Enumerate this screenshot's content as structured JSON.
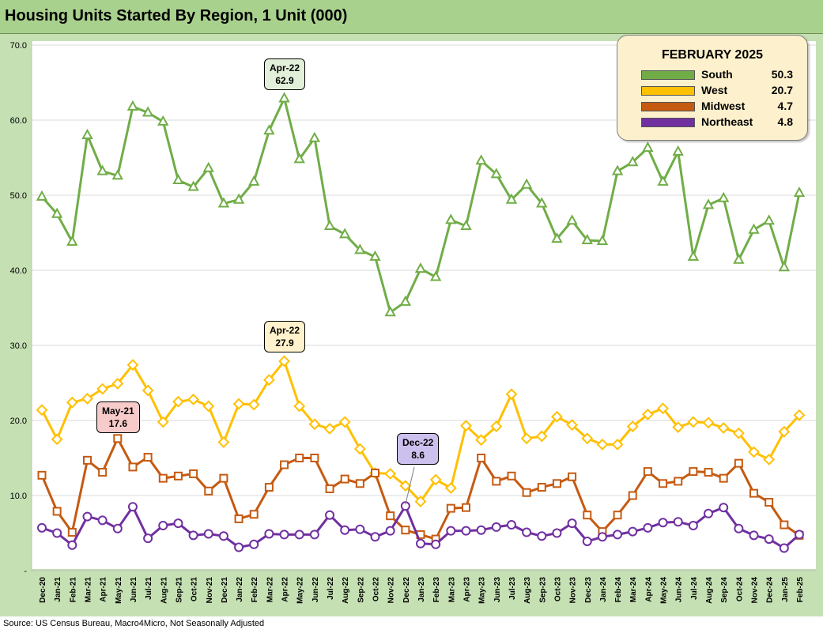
{
  "title": "Housing Units Started By Region, 1 Unit (000)",
  "source": "Source: US Census Bureau, Macro4Micro, Not Seasonally Adjusted",
  "legend": {
    "title": "FEBRUARY 2025",
    "items": [
      {
        "name": "South",
        "value": "50.3",
        "color": "#70ad47"
      },
      {
        "name": "West",
        "value": "20.7",
        "color": "#ffc000"
      },
      {
        "name": "Midwest",
        "value": "4.7",
        "color": "#c55a11"
      },
      {
        "name": "Northeast",
        "value": "4.8",
        "color": "#7030a0"
      }
    ]
  },
  "callouts": [
    {
      "period": "Apr-22",
      "value": "62.9",
      "series": "South",
      "bg": "#e2efd9"
    },
    {
      "period": "Apr-22",
      "value": "27.9",
      "series": "West",
      "bg": "#fff2cc"
    },
    {
      "period": "May-21",
      "value": "17.6",
      "series": "Midwest",
      "bg": "#f8cbcb"
    },
    {
      "period": "Dec-22",
      "value": "8.6",
      "series": "Northeast",
      "bg": "#ccc0ee"
    }
  ],
  "chart_data": {
    "type": "line",
    "title": "Housing Units Started By Region, 1 Unit (000)",
    "xlabel": "",
    "ylabel": "",
    "ylim": [
      0,
      70
    ],
    "yticks": [
      {
        "value": 0,
        "label": "-"
      },
      {
        "value": 10,
        "label": "10.0"
      },
      {
        "value": 20,
        "label": "20.0"
      },
      {
        "value": 30,
        "label": "30.0"
      },
      {
        "value": 40,
        "label": "40.0"
      },
      {
        "value": 50,
        "label": "50.0"
      },
      {
        "value": 60,
        "label": "60.0"
      },
      {
        "value": 70,
        "label": "70.0"
      }
    ],
    "grid": true,
    "categories": [
      "Dec-20",
      "Jan-21",
      "Feb-21",
      "Mar-21",
      "Apr-21",
      "May-21",
      "Jun-21",
      "Jul-21",
      "Aug-21",
      "Sep-21",
      "Oct-21",
      "Nov-21",
      "Dec-21",
      "Jan-22",
      "Feb-22",
      "Mar-22",
      "Apr-22",
      "May-22",
      "Jun-22",
      "Jul-22",
      "Aug-22",
      "Sep-22",
      "Oct-22",
      "Nov-22",
      "Dec-22",
      "Jan-23",
      "Feb-23",
      "Mar-23",
      "Apr-23",
      "May-23",
      "Jun-23",
      "Jul-23",
      "Aug-23",
      "Sep-23",
      "Oct-23",
      "Nov-23",
      "Dec-23",
      "Jan-24",
      "Feb-24",
      "Mar-24",
      "Apr-24",
      "May-24",
      "Jun-24",
      "Jul-24",
      "Aug-24",
      "Sep-24",
      "Oct-24",
      "Nov-24",
      "Dec-24",
      "Jan-25",
      "Feb-25"
    ],
    "series": [
      {
        "name": "South",
        "marker": "triangle",
        "color": "#70ad47",
        "values": [
          49.8,
          47.5,
          43.8,
          58.0,
          53.2,
          52.6,
          61.8,
          61.0,
          59.8,
          52.0,
          51.1,
          53.6,
          48.9,
          49.4,
          51.8,
          58.6,
          62.9,
          54.8,
          57.6,
          45.9,
          44.8,
          42.7,
          41.8,
          34.4,
          35.8,
          40.2,
          39.1,
          46.7,
          45.9,
          54.6,
          52.8,
          49.4,
          51.4,
          48.9,
          44.2,
          46.6,
          44.0,
          43.9,
          53.2,
          54.4,
          56.3,
          51.8,
          55.8,
          41.8,
          48.7,
          49.6,
          41.4,
          45.4,
          46.6,
          40.4,
          50.3
        ]
      },
      {
        "name": "West",
        "marker": "diamond",
        "color": "#ffc000",
        "values": [
          21.4,
          17.5,
          22.4,
          22.9,
          24.2,
          24.9,
          27.4,
          24.0,
          19.8,
          22.5,
          22.8,
          21.9,
          17.1,
          22.2,
          22.1,
          25.4,
          27.9,
          21.9,
          19.5,
          18.9,
          19.8,
          16.2,
          13.0,
          12.9,
          11.3,
          9.2,
          12.1,
          11.0,
          19.3,
          17.4,
          19.2,
          23.5,
          17.6,
          17.9,
          20.5,
          19.4,
          17.6,
          16.8,
          16.8,
          19.2,
          20.8,
          21.6,
          19.1,
          19.8,
          19.7,
          19.0,
          18.3,
          15.8,
          14.8,
          18.5,
          20.7
        ]
      },
      {
        "name": "Midwest",
        "marker": "square",
        "color": "#c55a11",
        "values": [
          12.7,
          7.9,
          5.1,
          14.7,
          13.1,
          17.6,
          13.8,
          15.1,
          12.3,
          12.6,
          12.9,
          10.6,
          12.3,
          6.9,
          7.5,
          11.1,
          14.1,
          15.0,
          15.0,
          10.9,
          12.2,
          11.6,
          13.0,
          7.3,
          5.4,
          4.8,
          4.2,
          8.3,
          8.4,
          15.0,
          11.9,
          12.6,
          10.4,
          11.1,
          11.6,
          12.5,
          7.4,
          5.2,
          7.4,
          10.0,
          13.2,
          11.6,
          11.9,
          13.2,
          13.1,
          12.3,
          14.3,
          10.3,
          9.1,
          6.1,
          4.7
        ]
      },
      {
        "name": "Northeast",
        "marker": "circle",
        "color": "#7030a0",
        "values": [
          5.7,
          5.0,
          3.4,
          7.2,
          6.7,
          5.6,
          8.5,
          4.3,
          6.0,
          6.3,
          4.7,
          4.9,
          4.6,
          3.1,
          3.5,
          4.9,
          4.8,
          4.8,
          4.8,
          7.4,
          5.4,
          5.5,
          4.5,
          5.3,
          8.6,
          3.6,
          3.5,
          5.3,
          5.3,
          5.4,
          5.8,
          6.1,
          5.1,
          4.6,
          5.0,
          6.3,
          3.9,
          4.5,
          4.8,
          5.2,
          5.7,
          6.4,
          6.5,
          6.0,
          7.6,
          8.4,
          5.6,
          4.7,
          4.2,
          3.0,
          4.8
        ]
      }
    ]
  }
}
